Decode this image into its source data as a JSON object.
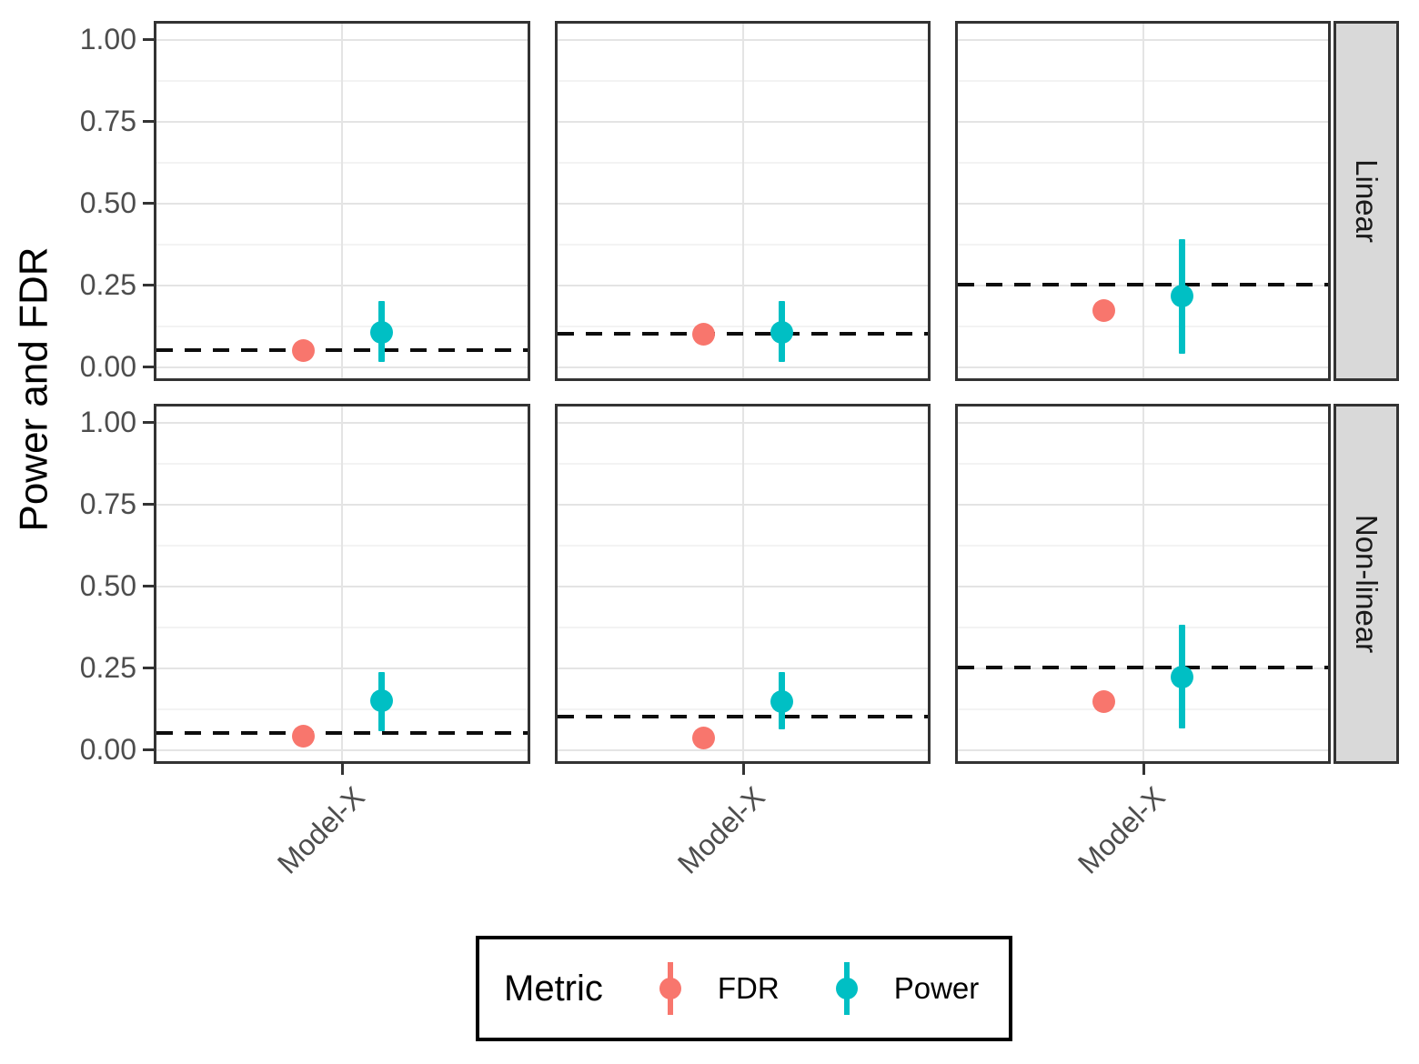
{
  "y_axis": {
    "title": "Power and FDR",
    "tick_labels": [
      "0.00",
      "0.25",
      "0.50",
      "0.75",
      "1.00"
    ],
    "tick_values": [
      0,
      0.25,
      0.5,
      0.75,
      1.0
    ]
  },
  "x_axis": {
    "tick_label": "Model-X"
  },
  "facets": {
    "row_labels": [
      "Linear",
      "Non-linear"
    ]
  },
  "legend": {
    "title": "Metric",
    "items": [
      {
        "label": "FDR",
        "color_key": "fdr"
      },
      {
        "label": "Power",
        "color_key": "power"
      }
    ]
  },
  "colors": {
    "fdr": "#F8766D",
    "power": "#00BFC4",
    "strip_bg": "#D9D9D9",
    "panel_border": "#333333",
    "grid_major": "#E4E4E4",
    "grid_minor": "#F3F3F3",
    "dashed": "#0D0D0D",
    "axis_text": "#4D4D4D"
  },
  "chart_data": {
    "type": "pointrange",
    "ylabel": "Power and FDR",
    "ylim": [
      0,
      1
    ],
    "yticks": [
      0,
      0.25,
      0.5,
      0.75,
      1.0
    ],
    "grid": true,
    "legend_position": "bottom",
    "x_category": "Model-X",
    "facet_rows": [
      "Linear",
      "Non-linear"
    ],
    "series_names": [
      "FDR",
      "Power"
    ],
    "panels": [
      {
        "facet_row": "Linear",
        "col": 1,
        "target_line": 0.05,
        "points": [
          {
            "metric": "FDR",
            "y": 0.05
          },
          {
            "metric": "Power",
            "y": 0.105,
            "ymin": 0.015,
            "ymax": 0.2
          }
        ]
      },
      {
        "facet_row": "Linear",
        "col": 2,
        "target_line": 0.1,
        "points": [
          {
            "metric": "FDR",
            "y": 0.1
          },
          {
            "metric": "Power",
            "y": 0.105,
            "ymin": 0.015,
            "ymax": 0.2
          }
        ]
      },
      {
        "facet_row": "Linear",
        "col": 3,
        "target_line": 0.25,
        "points": [
          {
            "metric": "FDR",
            "y": 0.17
          },
          {
            "metric": "Power",
            "y": 0.215,
            "ymin": 0.04,
            "ymax": 0.39
          }
        ]
      },
      {
        "facet_row": "Non-linear",
        "col": 1,
        "target_line": 0.05,
        "points": [
          {
            "metric": "FDR",
            "y": 0.04
          },
          {
            "metric": "Power",
            "y": 0.15,
            "ymin": 0.055,
            "ymax": 0.235
          }
        ]
      },
      {
        "facet_row": "Non-linear",
        "col": 2,
        "target_line": 0.1,
        "points": [
          {
            "metric": "FDR",
            "y": 0.035
          },
          {
            "metric": "Power",
            "y": 0.145,
            "ymin": 0.06,
            "ymax": 0.235
          }
        ]
      },
      {
        "facet_row": "Non-linear",
        "col": 3,
        "target_line": 0.25,
        "points": [
          {
            "metric": "FDR",
            "y": 0.145
          },
          {
            "metric": "Power",
            "y": 0.22,
            "ymin": 0.065,
            "ymax": 0.38
          }
        ]
      }
    ]
  }
}
